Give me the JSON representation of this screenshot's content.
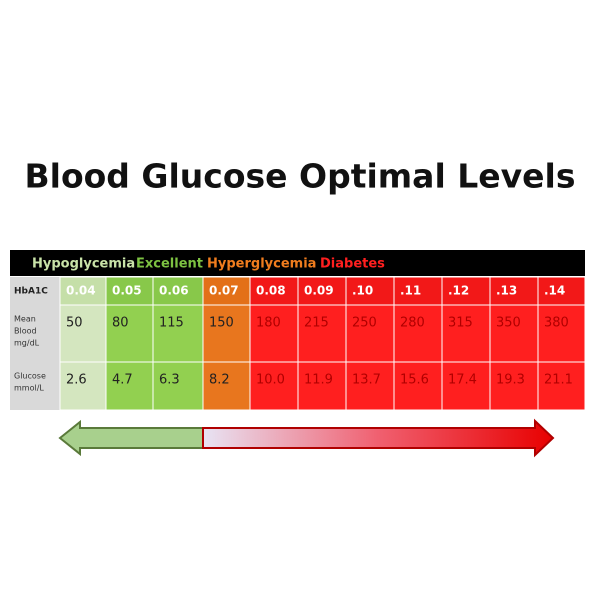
{
  "title": "Blood Glucose Optimal Levels",
  "legend": [
    "Hypoglycemia",
    "Excellent",
    "Hyperglycemia",
    "Diabetes"
  ],
  "table": {
    "header": {
      "label": "HbA1C",
      "cells": [
        "0.04",
        "0.05",
        "0.06",
        "0.07",
        "0.08",
        "0.09",
        ".10",
        ".11",
        ".12",
        ".13",
        ".14"
      ]
    },
    "rows": [
      {
        "label": [
          "Mean",
          "Blood",
          "mg/dL"
        ],
        "cells": [
          "50",
          "80",
          "115",
          "150",
          "180",
          "215",
          "250",
          "280",
          "315",
          "350",
          "380"
        ]
      },
      {
        "label": [
          "Glucose",
          "mmol/L"
        ],
        "cells": [
          "2.6",
          "4.7",
          "6.3",
          "8.2",
          "10.0",
          "11.9",
          "13.7",
          "15.6",
          "17.4",
          "19.3",
          "21.1"
        ]
      }
    ]
  }
}
